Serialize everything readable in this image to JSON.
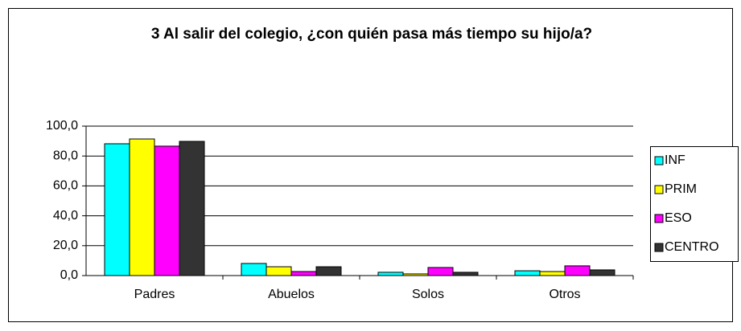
{
  "chart_data": {
    "type": "bar",
    "title": "3 Al salir del colegio, ¿con quién pasa más tiempo su hijo/a?",
    "categories": [
      "Padres",
      "Abuelos",
      "Solos",
      "Otros"
    ],
    "series": [
      {
        "name": "INF",
        "color": "#00ffff",
        "values": [
          88.2,
          8.1,
          2.2,
          3.2
        ]
      },
      {
        "name": "PRIM",
        "color": "#ffff00",
        "values": [
          91.4,
          5.9,
          1.1,
          2.7
        ]
      },
      {
        "name": "ESO",
        "color": "#ff00ff",
        "values": [
          86.6,
          2.7,
          5.4,
          6.5
        ]
      },
      {
        "name": "CENTRO",
        "color": "#333333",
        "values": [
          89.8,
          5.9,
          2.2,
          3.8
        ]
      }
    ],
    "ylim": [
      0,
      100
    ],
    "yticks": [
      {
        "value": 0,
        "label": "0,0"
      },
      {
        "value": 20,
        "label": "20,0"
      },
      {
        "value": 40,
        "label": "40,0"
      },
      {
        "value": 60,
        "label": "60,0"
      },
      {
        "value": 80,
        "label": "80,0"
      },
      {
        "value": 100,
        "label": "100,0"
      }
    ],
    "grid": true,
    "legend": "right"
  }
}
